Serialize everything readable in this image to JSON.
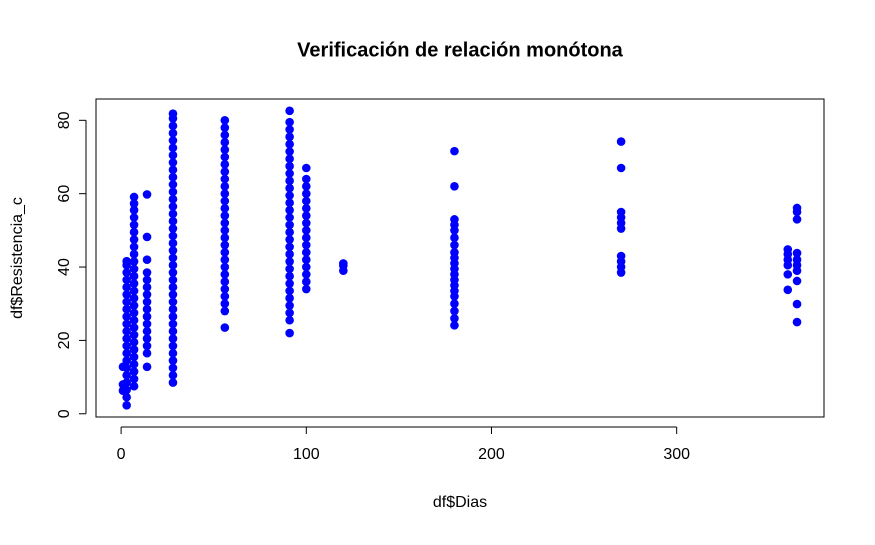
{
  "chart_data": {
    "type": "scatter",
    "title": "Verificación de relación monótona",
    "x_label": "df$Dias",
    "y_label": "df$Resistencia_c",
    "color": "#0000ff",
    "xlim": [
      -13.56,
      379.56
    ],
    "ylim": [
      -0.88,
      85.81
    ],
    "xticks": [
      0,
      100,
      200,
      300
    ],
    "yticks": [
      0,
      20,
      40,
      60,
      80
    ],
    "x": [
      1,
      1,
      1,
      3,
      3,
      3,
      3,
      3,
      3,
      3,
      3,
      3,
      3,
      3,
      3,
      3,
      3,
      3,
      3,
      3,
      3,
      3,
      3,
      3,
      7,
      7,
      7,
      7,
      7,
      7,
      7,
      7,
      7,
      7,
      7,
      7,
      7,
      7,
      7,
      7,
      7,
      7,
      7,
      7,
      7,
      7,
      7,
      7,
      7,
      7,
      7,
      14,
      14,
      14,
      14,
      14,
      14,
      14,
      14,
      14,
      14,
      14,
      14,
      14,
      14,
      14,
      14,
      28,
      28,
      28,
      28,
      28,
      28,
      28,
      28,
      28,
      28,
      28,
      28,
      28,
      28,
      28,
      28,
      28,
      28,
      28,
      28,
      28,
      28,
      28,
      28,
      28,
      28,
      28,
      28,
      28,
      28,
      28,
      28,
      28,
      28,
      28,
      28,
      28,
      28,
      56,
      56,
      56,
      56,
      56,
      56,
      56,
      56,
      56,
      56,
      56,
      56,
      56,
      56,
      56,
      56,
      56,
      56,
      56,
      56,
      56,
      56,
      56,
      56,
      56,
      56,
      56,
      56,
      91,
      91,
      91,
      91,
      91,
      91,
      91,
      91,
      91,
      91,
      91,
      91,
      91,
      91,
      91,
      91,
      91,
      91,
      91,
      91,
      91,
      91,
      91,
      91,
      91,
      91,
      91,
      91,
      91,
      91,
      100,
      100,
      100,
      100,
      100,
      100,
      100,
      100,
      100,
      100,
      100,
      100,
      100,
      100,
      100,
      100,
      100,
      120,
      120,
      120,
      180,
      180,
      180,
      180,
      180,
      180,
      180,
      180,
      180,
      180,
      180,
      180,
      180,
      180,
      180,
      180,
      180,
      180,
      180,
      180,
      270,
      270,
      270,
      270,
      270,
      270,
      270,
      270,
      270,
      270,
      360,
      360,
      360,
      360,
      360,
      360,
      365,
      365,
      365,
      365,
      365,
      365,
      365,
      365,
      365,
      365
    ],
    "values": [
      6.3,
      8.0,
      12.8,
      2.3,
      4.5,
      6.5,
      8.5,
      10.5,
      12.5,
      14.5,
      16.5,
      18.5,
      20.5,
      22.5,
      24.5,
      26.5,
      28.5,
      30.5,
      32.5,
      34.5,
      36.5,
      38.5,
      40.5,
      41.6,
      7.5,
      9.5,
      11.5,
      13.5,
      15.5,
      17.5,
      19.5,
      21.5,
      23.5,
      25.5,
      27.5,
      29.5,
      31.5,
      33.5,
      35.5,
      37.5,
      39.5,
      41.5,
      43.5,
      45.5,
      47.5,
      49.5,
      51.5,
      53.5,
      55.5,
      57.3,
      59.1,
      12.8,
      16.5,
      18.5,
      20.5,
      22.5,
      24.5,
      26.5,
      28.5,
      30.5,
      32.5,
      34.5,
      36.5,
      38.5,
      42,
      48.2,
      59.8,
      8.5,
      10.5,
      12.5,
      14.5,
      16.5,
      18.5,
      20.5,
      22.5,
      24.5,
      26.5,
      28.5,
      30.5,
      32.5,
      34.5,
      36.5,
      38.5,
      40.5,
      42.5,
      44.5,
      46.5,
      48.5,
      50.5,
      52.5,
      54.5,
      56.5,
      58.5,
      60.5,
      62.5,
      64.5,
      66.5,
      68.5,
      70.5,
      72.5,
      74.5,
      76.5,
      78.5,
      80.5,
      81.8,
      23.5,
      28,
      30,
      32,
      34,
      36,
      38,
      40,
      42,
      44,
      46,
      48,
      50,
      52,
      54,
      56,
      58,
      60,
      62,
      64,
      66,
      68,
      70,
      72,
      74,
      76,
      78,
      80,
      22,
      25.5,
      27.5,
      29.5,
      31.5,
      33.5,
      35.5,
      37.5,
      39.5,
      41.5,
      43.5,
      45.5,
      47.5,
      49.5,
      51.5,
      53.5,
      55.5,
      57.5,
      59.5,
      61.5,
      63.5,
      65.5,
      67.5,
      69.5,
      71.5,
      73.5,
      75.5,
      77.5,
      79.5,
      82.6,
      34,
      36,
      38,
      40,
      42,
      44,
      46,
      48,
      50,
      52,
      54,
      56,
      58,
      60,
      62,
      64,
      67,
      39,
      40.4,
      41,
      24.1,
      26,
      28,
      30,
      32,
      33.5,
      35,
      36.5,
      38,
      39.5,
      41,
      42.5,
      44,
      46,
      48,
      50,
      51.5,
      53,
      62,
      71.6,
      38.5,
      40,
      41.5,
      43,
      50.5,
      52,
      53.5,
      55,
      67,
      74.2,
      33.8,
      38,
      40.5,
      42,
      43.5,
      44.8,
      25,
      29.9,
      36.2,
      39,
      40.5,
      42,
      43.8,
      53,
      55,
      56.1
    ]
  }
}
